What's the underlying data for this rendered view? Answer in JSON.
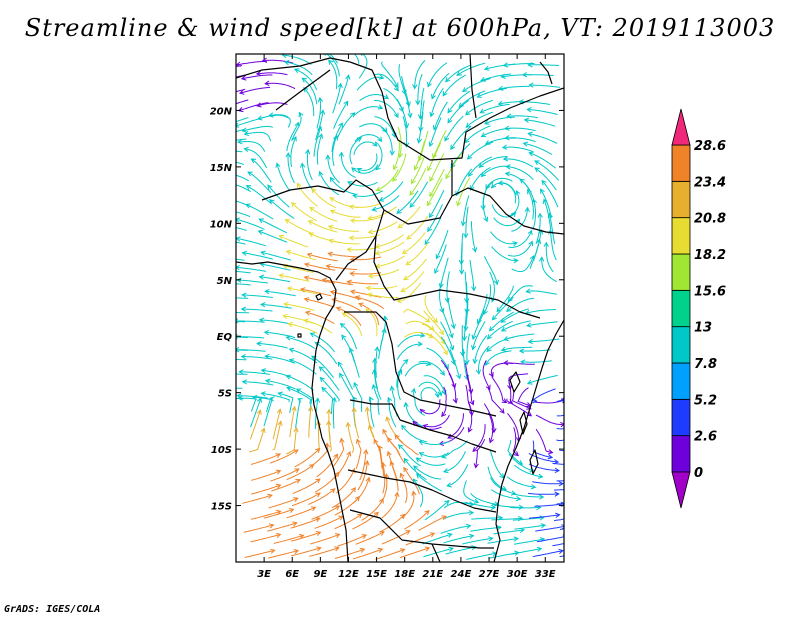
{
  "title": "Streamline & wind speed[kt] at 600hPa, VT: 2019113003",
  "credit": "GrADS: IGES/COLA",
  "map": {
    "lon_range": [
      0,
      35
    ],
    "lat_range": [
      -20,
      25
    ],
    "lon_ticks": [
      {
        "value": 3,
        "label": "3E"
      },
      {
        "value": 6,
        "label": "6E"
      },
      {
        "value": 9,
        "label": "9E"
      },
      {
        "value": 12,
        "label": "12E"
      },
      {
        "value": 15,
        "label": "15E"
      },
      {
        "value": 18,
        "label": "18E"
      },
      {
        "value": 21,
        "label": "21E"
      },
      {
        "value": 24,
        "label": "24E"
      },
      {
        "value": 27,
        "label": "27E"
      },
      {
        "value": 30,
        "label": "30E"
      },
      {
        "value": 33,
        "label": "33E"
      }
    ],
    "lat_ticks": [
      {
        "value": 20,
        "label": "20N"
      },
      {
        "value": 15,
        "label": "15N"
      },
      {
        "value": 10,
        "label": "10N"
      },
      {
        "value": 5,
        "label": "5N"
      },
      {
        "value": 0,
        "label": "EQ"
      },
      {
        "value": -5,
        "label": "5S"
      },
      {
        "value": -10,
        "label": "10S"
      },
      {
        "value": -15,
        "label": "15S"
      }
    ]
  },
  "colorbar": {
    "unit": "kt",
    "levels": [
      "0",
      "2.6",
      "5.2",
      "7.8",
      "13",
      "15.6",
      "18.2",
      "20.8",
      "23.4",
      "28.6"
    ],
    "colors": [
      "#a000c8",
      "#6e00dc",
      "#1e3cff",
      "#00a0ff",
      "#00c8c8",
      "#00d28c",
      "#a0e632",
      "#e6dc32",
      "#e6af2d",
      "#f08228",
      "#f0287a"
    ]
  }
}
